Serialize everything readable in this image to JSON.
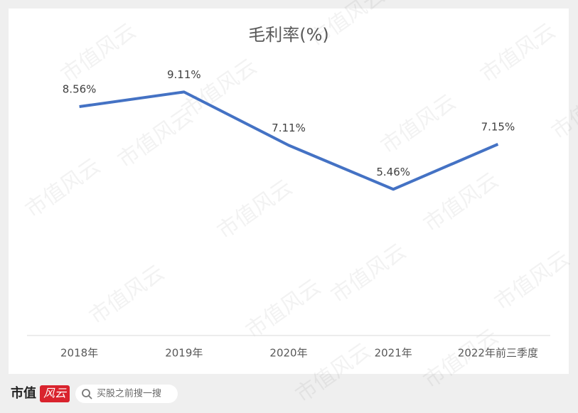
{
  "chart_data": {
    "type": "line",
    "title": "毛利率(%)",
    "categories": [
      "2018年",
      "2019年",
      "2020年",
      "2021年",
      "2022年前三季度"
    ],
    "series": [
      {
        "name": "毛利率",
        "color": "#4472c4",
        "values": [
          8.56,
          9.11,
          7.11,
          5.46,
          7.15
        ],
        "value_labels": [
          "8.56%",
          "9.11%",
          "7.11%",
          "5.46%",
          "7.15%"
        ]
      }
    ],
    "ylim": [
      0,
      10
    ]
  },
  "watermark": "市值风云",
  "footer": {
    "logo_text": "市值",
    "logo_badge": "风云",
    "search": "买股之前搜一搜"
  }
}
